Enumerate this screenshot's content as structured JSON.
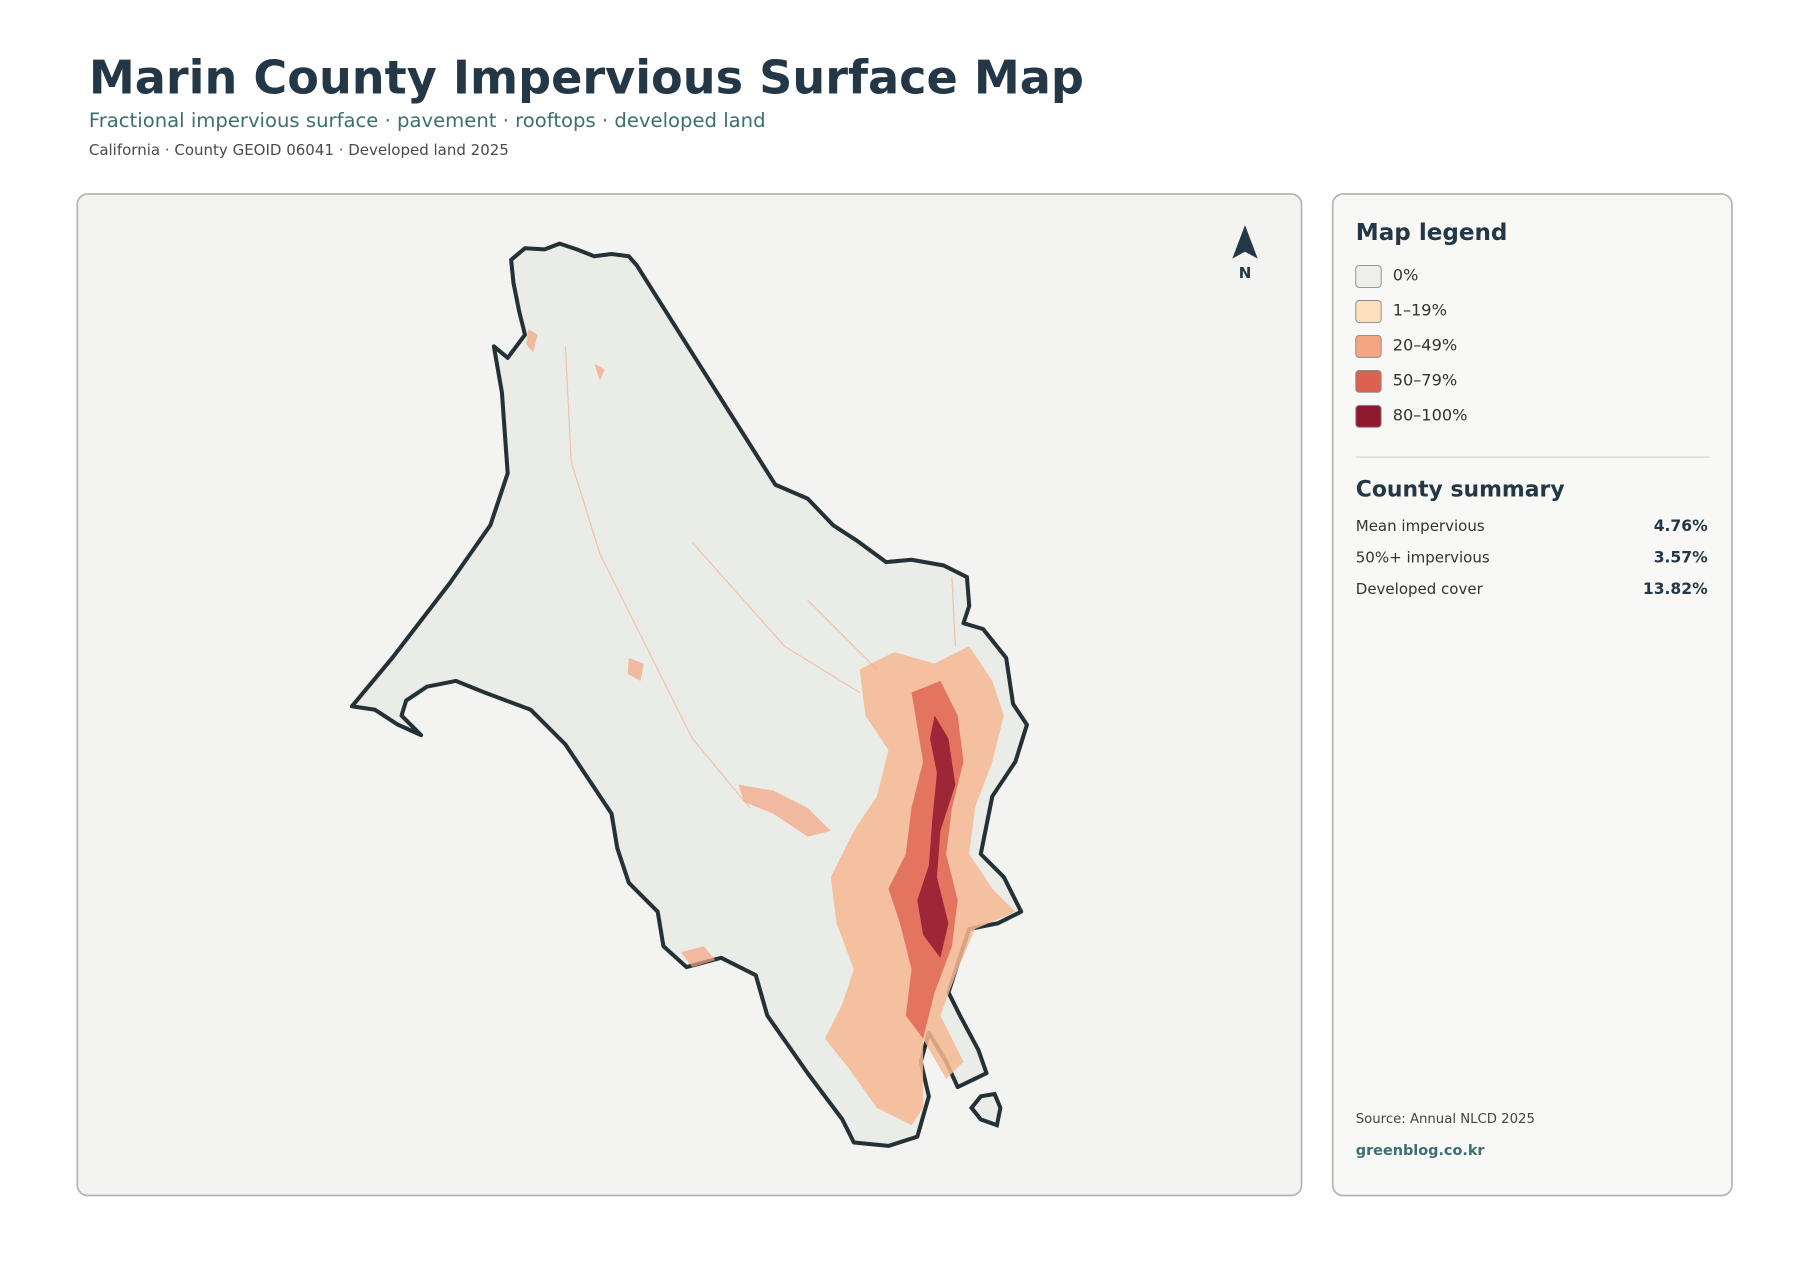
{
  "header": {
    "title": "Marin County Impervious Surface Map",
    "subtitle": "Fractional impervious surface · pavement · rooftops · developed land",
    "meta": "California · County GEOID 06041 · Developed land 2025"
  },
  "map": {
    "north": "N"
  },
  "legend": {
    "title": "Map legend",
    "items": [
      {
        "label": "0%",
        "color": "#eeeeec"
      },
      {
        "label": "1–19%",
        "color": "#fde0bd"
      },
      {
        "label": "20–49%",
        "color": "#f4a582"
      },
      {
        "label": "50–79%",
        "color": "#de6150"
      },
      {
        "label": "80–100%",
        "color": "#8f1a30"
      }
    ]
  },
  "summary": {
    "title": "County summary",
    "rows": [
      {
        "label": "Mean impervious",
        "value": "4.76%"
      },
      {
        "label": "50%+ impervious",
        "value": "3.57%"
      },
      {
        "label": "Developed cover",
        "value": "13.82%"
      }
    ]
  },
  "footer": {
    "source": "Source: Annual NLCD 2025",
    "site": "greenblog.co.kr"
  }
}
